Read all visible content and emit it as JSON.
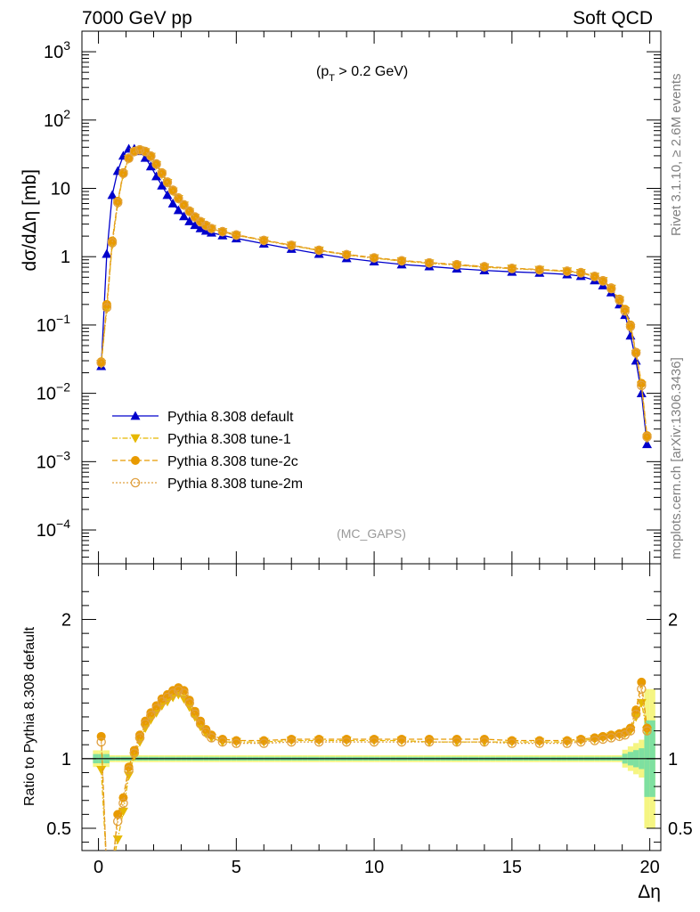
{
  "header": {
    "left": "7000 GeV pp",
    "right": "Soft QCD"
  },
  "side_labels": {
    "top": "Rivet 3.1.10, ≥ 2.6M events",
    "bottom": "mcplots.cern.ch [arXiv:1306.3436]"
  },
  "colors": {
    "default": "#0000cc",
    "tune1": "#e6b800",
    "tune2c": "#e89a00",
    "tune2m": "#e0a040",
    "band_yellow": "#f5f582",
    "band_green": "#7ee0a0"
  },
  "chart_data": [
    {
      "type": "line",
      "panel": "main",
      "annotation": "(p_T > 0.2 GeV)",
      "annotation_main": "(p",
      "annotation_sub": "T",
      "annotation_tail": " > 0.2 GeV)",
      "watermark": "(MC_GAPS)",
      "ylabel": "dσ/dΔη [mb]",
      "yscale": "log",
      "xlim": [
        -0.6,
        20.4
      ],
      "ylim": [
        3.2e-05,
        2000
      ],
      "x_ticks": [
        0,
        5,
        10,
        15,
        20
      ],
      "y_tick_labels": [
        {
          "value": 1000,
          "base": "10",
          "exp": "3"
        },
        {
          "value": 100,
          "base": "10",
          "exp": "2"
        },
        {
          "value": 10,
          "base": "10",
          "exp": ""
        },
        {
          "value": 1,
          "base": "1",
          "exp": ""
        },
        {
          "value": 0.1,
          "base": "10",
          "exp": "−1"
        },
        {
          "value": 0.01,
          "base": "10",
          "exp": "−2"
        },
        {
          "value": 0.001,
          "base": "10",
          "exp": "−3"
        },
        {
          "value": 0.0001,
          "base": "10",
          "exp": "−4"
        }
      ],
      "legend_placement": "lower-left",
      "series": [
        {
          "name": "Pythia 8.308 default",
          "marker": "triangle-up",
          "style": "solid",
          "x": [
            0.1,
            0.3,
            0.5,
            0.7,
            0.9,
            1.1,
            1.3,
            1.5,
            1.7,
            1.9,
            2.1,
            2.3,
            2.5,
            2.7,
            2.9,
            3.1,
            3.3,
            3.5,
            3.7,
            3.9,
            4.1,
            4.5,
            5,
            6,
            7,
            8,
            9,
            10,
            11,
            12,
            13,
            14,
            15,
            16,
            17,
            17.5,
            18,
            18.3,
            18.6,
            18.9,
            19.1,
            19.3,
            19.5,
            19.7,
            19.9
          ],
          "y": [
            0.025,
            1.1,
            8,
            18,
            30,
            38,
            38,
            35,
            28,
            21,
            15,
            11,
            8,
            6,
            4.8,
            3.9,
            3.3,
            2.9,
            2.6,
            2.4,
            2.25,
            2.05,
            1.85,
            1.55,
            1.3,
            1.1,
            0.95,
            0.85,
            0.77,
            0.72,
            0.67,
            0.63,
            0.6,
            0.58,
            0.55,
            0.52,
            0.45,
            0.38,
            0.3,
            0.2,
            0.14,
            0.07,
            0.03,
            0.01,
            0.0018
          ]
        },
        {
          "name": "Pythia 8.308 tune-1",
          "marker": "triangle-down",
          "style": "dash-dot",
          "x": [
            0.1,
            0.3,
            0.5,
            0.7,
            0.9,
            1.1,
            1.3,
            1.5,
            1.7,
            1.9,
            2.1,
            2.3,
            2.5,
            2.7,
            2.9,
            3.1,
            3.3,
            3.5,
            3.7,
            3.9,
            4.1,
            4.5,
            5,
            6,
            7,
            8,
            9,
            10,
            11,
            12,
            13,
            14,
            15,
            16,
            17,
            17.5,
            18,
            18.3,
            18.6,
            18.9,
            19.1,
            19.3,
            19.5,
            19.7,
            19.9
          ],
          "y": [
            0.027,
            0.17,
            1.5,
            6,
            16,
            27,
            34,
            36,
            34,
            29,
            22,
            16,
            12,
            9,
            7,
            5.6,
            4.5,
            3.7,
            3.2,
            2.8,
            2.55,
            2.3,
            2.05,
            1.72,
            1.45,
            1.23,
            1.06,
            0.95,
            0.86,
            0.8,
            0.75,
            0.7,
            0.67,
            0.64,
            0.61,
            0.58,
            0.51,
            0.44,
            0.34,
            0.23,
            0.16,
            0.09,
            0.038,
            0.013,
            0.0022
          ]
        },
        {
          "name": "Pythia 8.308 tune-2c",
          "marker": "circle-filled",
          "style": "dashed",
          "x": [
            0.1,
            0.3,
            0.5,
            0.7,
            0.9,
            1.1,
            1.3,
            1.5,
            1.7,
            1.9,
            2.1,
            2.3,
            2.5,
            2.7,
            2.9,
            3.1,
            3.3,
            3.5,
            3.7,
            3.9,
            4.1,
            4.5,
            5,
            6,
            7,
            8,
            9,
            10,
            11,
            12,
            13,
            14,
            15,
            16,
            17,
            17.5,
            18,
            18.3,
            18.6,
            18.9,
            19.1,
            19.3,
            19.5,
            19.7,
            19.9
          ],
          "y": [
            0.029,
            0.2,
            1.7,
            6.5,
            17,
            28,
            35,
            37,
            35,
            30,
            23,
            17,
            12.5,
            9.5,
            7.3,
            5.8,
            4.7,
            3.85,
            3.3,
            2.9,
            2.6,
            2.35,
            2.1,
            1.75,
            1.48,
            1.25,
            1.08,
            0.97,
            0.88,
            0.82,
            0.77,
            0.72,
            0.68,
            0.65,
            0.62,
            0.59,
            0.52,
            0.45,
            0.35,
            0.24,
            0.17,
            0.1,
            0.04,
            0.014,
            0.0024
          ]
        },
        {
          "name": "Pythia 8.308 tune-2m",
          "marker": "circle-open",
          "style": "dotted",
          "x": [
            0.1,
            0.3,
            0.5,
            0.7,
            0.9,
            1.1,
            1.3,
            1.5,
            1.7,
            1.9,
            2.1,
            2.3,
            2.5,
            2.7,
            2.9,
            3.1,
            3.3,
            3.5,
            3.7,
            3.9,
            4.1,
            4.5,
            5,
            6,
            7,
            8,
            9,
            10,
            11,
            12,
            13,
            14,
            15,
            16,
            17,
            17.5,
            18,
            18.3,
            18.6,
            18.9,
            19.1,
            19.3,
            19.5,
            19.7,
            19.9
          ],
          "y": [
            0.028,
            0.18,
            1.6,
            6.2,
            16.5,
            27.5,
            34.5,
            36.5,
            34.5,
            29.5,
            22.5,
            16.5,
            12.2,
            9.3,
            7.1,
            5.7,
            4.6,
            3.8,
            3.25,
            2.85,
            2.58,
            2.32,
            2.07,
            1.73,
            1.46,
            1.24,
            1.07,
            0.96,
            0.87,
            0.81,
            0.76,
            0.71,
            0.67,
            0.64,
            0.61,
            0.58,
            0.51,
            0.44,
            0.34,
            0.23,
            0.16,
            0.095,
            0.039,
            0.013,
            0.0023
          ]
        }
      ]
    },
    {
      "type": "line",
      "panel": "ratio",
      "ylabel": "Ratio to Pythia 8.308 default",
      "xlabel": "Δη",
      "xlim": [
        -0.6,
        20.4
      ],
      "ylim": [
        0.34,
        2.4
      ],
      "x_ticks": [
        0,
        5,
        10,
        15,
        20
      ],
      "x_tick_labels": [
        "0",
        "5",
        "10",
        "15",
        "20"
      ],
      "y_ticks": [
        0.5,
        1,
        2
      ],
      "y_tick_labels": [
        "0.5",
        "1",
        "2"
      ],
      "reference": 1,
      "series": [
        {
          "name": "Pythia 8.308 tune-1",
          "x": [
            0.1,
            0.3,
            0.5,
            0.7,
            0.9,
            1.1,
            1.3,
            1.5,
            1.7,
            1.9,
            2.1,
            2.3,
            2.5,
            2.7,
            2.9,
            3.1,
            3.3,
            3.5,
            3.7,
            3.9,
            4.1,
            4.5,
            5,
            6,
            7,
            8,
            9,
            10,
            11,
            12,
            13,
            14,
            15,
            16,
            17,
            17.5,
            18,
            18.3,
            18.6,
            18.9,
            19.1,
            19.3,
            19.5,
            19.7,
            19.9
          ],
          "y": [
            0.92,
            0.2,
            0.22,
            0.42,
            0.62,
            0.88,
            1.02,
            1.12,
            1.22,
            1.28,
            1.33,
            1.38,
            1.41,
            1.44,
            1.46,
            1.43,
            1.37,
            1.3,
            1.23,
            1.18,
            1.15,
            1.12,
            1.12,
            1.12,
            1.13,
            1.13,
            1.13,
            1.13,
            1.13,
            1.12,
            1.12,
            1.12,
            1.12,
            1.12,
            1.12,
            1.13,
            1.14,
            1.15,
            1.16,
            1.17,
            1.18,
            1.2,
            1.3,
            1.4,
            1.2
          ]
        },
        {
          "name": "Pythia 8.308 tune-2c",
          "x": [
            0.1,
            0.3,
            0.5,
            0.7,
            0.9,
            1.1,
            1.3,
            1.5,
            1.7,
            1.9,
            2.1,
            2.3,
            2.5,
            2.7,
            2.9,
            3.1,
            3.3,
            3.5,
            3.7,
            3.9,
            4.1,
            4.5,
            5,
            6,
            7,
            8,
            9,
            10,
            11,
            12,
            13,
            14,
            15,
            16,
            17,
            17.5,
            18,
            18.3,
            18.6,
            18.9,
            19.1,
            19.3,
            19.5,
            19.7,
            19.9
          ],
          "y": [
            1.16,
            0.18,
            0.2,
            0.6,
            0.72,
            0.94,
            1.06,
            1.17,
            1.27,
            1.33,
            1.38,
            1.43,
            1.46,
            1.49,
            1.51,
            1.49,
            1.42,
            1.34,
            1.27,
            1.21,
            1.17,
            1.14,
            1.13,
            1.13,
            1.14,
            1.14,
            1.14,
            1.14,
            1.14,
            1.14,
            1.14,
            1.14,
            1.13,
            1.13,
            1.13,
            1.14,
            1.15,
            1.16,
            1.17,
            1.18,
            1.19,
            1.22,
            1.35,
            1.55,
            1.22
          ]
        },
        {
          "name": "Pythia 8.308 tune-2m",
          "x": [
            0.1,
            0.3,
            0.5,
            0.7,
            0.9,
            1.1,
            1.3,
            1.5,
            1.7,
            1.9,
            2.1,
            2.3,
            2.5,
            2.7,
            2.9,
            3.1,
            3.3,
            3.5,
            3.7,
            3.9,
            4.1,
            4.5,
            5,
            6,
            7,
            8,
            9,
            10,
            11,
            12,
            13,
            14,
            15,
            16,
            17,
            17.5,
            18,
            18.3,
            18.6,
            18.9,
            19.1,
            19.3,
            19.5,
            19.7,
            19.9
          ],
          "y": [
            1.12,
            0.19,
            0.21,
            0.55,
            0.68,
            0.92,
            1.04,
            1.15,
            1.25,
            1.31,
            1.36,
            1.41,
            1.44,
            1.47,
            1.49,
            1.47,
            1.4,
            1.32,
            1.25,
            1.19,
            1.15,
            1.12,
            1.11,
            1.11,
            1.12,
            1.12,
            1.12,
            1.12,
            1.12,
            1.12,
            1.12,
            1.12,
            1.11,
            1.11,
            1.11,
            1.12,
            1.13,
            1.14,
            1.15,
            1.16,
            1.17,
            1.2,
            1.32,
            1.5,
            1.2
          ]
        }
      ]
    }
  ]
}
